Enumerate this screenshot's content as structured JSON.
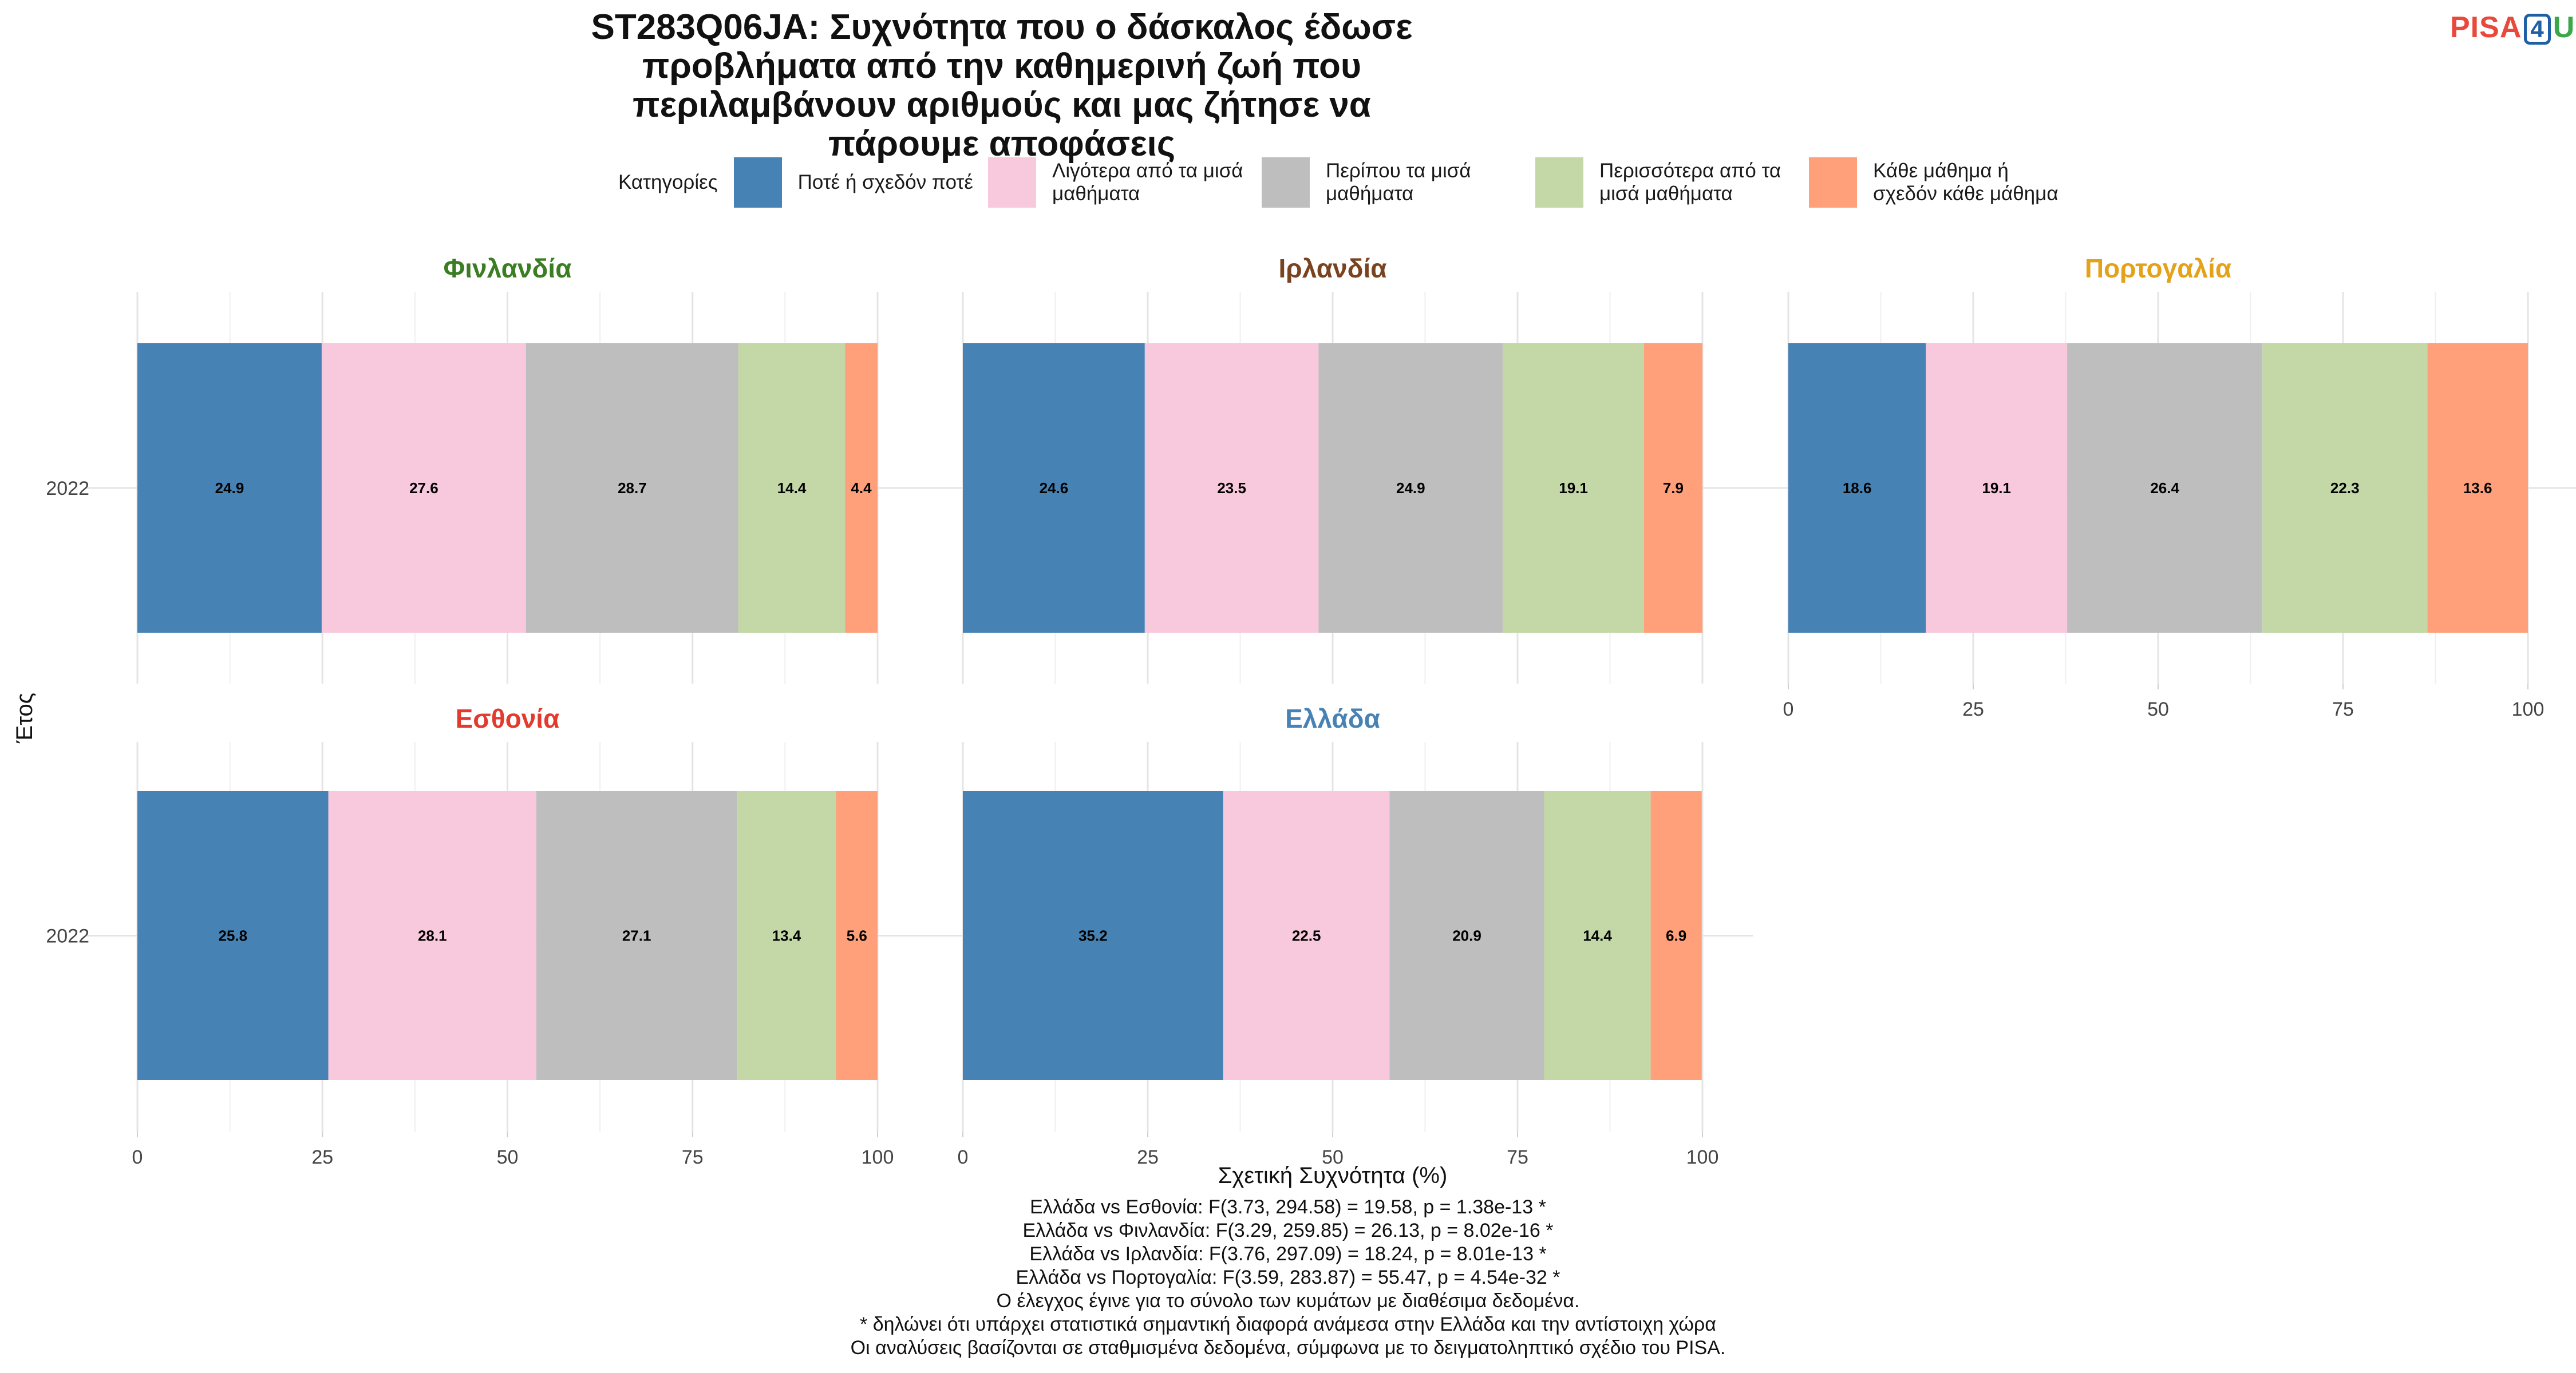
{
  "title": "ST283Q06JA: Συχνότητα που ο δάσκαλος έδωσε προβλήματα από την καθημερινή ζωή που περιλαμβάνουν αριθμούς και μας ζήτησε να πάρουμε αποφάσεις",
  "logo": {
    "p": "PISA",
    "four": "4",
    "u": "U"
  },
  "colors": {
    "never": "#4682b4",
    "less_half": "#f8c8dc",
    "about_half": "#bebebe",
    "more_half": "#c3d8a6",
    "every": "#ffa07a"
  },
  "legend": {
    "title": "Κατηγορίες",
    "items": [
      {
        "label": "Ποτέ ή σχεδόν ποτέ",
        "color": "#4682b4"
      },
      {
        "label": "Λιγότερα από τα μισά μαθήματα",
        "color": "#f8c8dc"
      },
      {
        "label": "Περίπου τα μισά μαθήματα",
        "color": "#bebebe"
      },
      {
        "label": "Περισσότερα από τα μισά μαθήματα",
        "color": "#c3d8a6"
      },
      {
        "label": "Κάθε μάθημα ή σχεδόν κάθε μάθημα",
        "color": "#ffa07a"
      }
    ]
  },
  "chart_data": {
    "type": "bar",
    "orientation": "horizontal",
    "stacked": true,
    "xlabel": "Σχετική Συχνότητα (%)",
    "ylabel": "Έτος",
    "xlim": [
      0,
      100
    ],
    "xticks": [
      0,
      25,
      50,
      75,
      100
    ],
    "categories": [
      "2022"
    ],
    "series_names": [
      "Ποτέ ή σχεδόν ποτέ",
      "Λιγότερα από τα μισά μαθήματα",
      "Περίπου τα μισά μαθήματα",
      "Περισσότερα από τα μισά μαθήματα",
      "Κάθε μάθημα ή σχεδόν κάθε μάθημα"
    ],
    "panels": [
      {
        "name": "Φινλανδία",
        "color": "#3a7d23",
        "year": "2022",
        "values": [
          24.9,
          27.6,
          28.7,
          14.4,
          4.4
        ]
      },
      {
        "name": "Ιρλανδία",
        "color": "#7a4320",
        "year": "2022",
        "values": [
          24.6,
          23.5,
          24.9,
          19.1,
          7.9
        ]
      },
      {
        "name": "Πορτογαλία",
        "color": "#e3a21a",
        "year": "2022",
        "values": [
          18.6,
          19.1,
          26.4,
          22.3,
          13.6
        ]
      },
      {
        "name": "Εσθονία",
        "color": "#e23a2e",
        "year": "2022",
        "values": [
          25.8,
          28.1,
          27.1,
          13.4,
          5.6
        ]
      },
      {
        "name": "Ελλάδα",
        "color": "#4682b4",
        "year": "2022",
        "values": [
          35.2,
          22.5,
          20.9,
          14.4,
          6.9
        ]
      }
    ]
  },
  "footnotes": [
    "Ελλάδα vs Εσθονία: F(3.73, 294.58) = 19.58, p = 1.38e-13 *",
    "Ελλάδα vs Φινλανδία: F(3.29, 259.85) = 26.13, p = 8.02e-16 *",
    "Ελλάδα vs Ιρλανδία: F(3.76, 297.09) = 18.24, p = 8.01e-13 *",
    "Ελλάδα vs Πορτογαλία: F(3.59, 283.87) = 55.47, p = 4.54e-32 *",
    "Ο έλεγχος έγινε για το σύνολο των κυμάτων με διαθέσιμα δεδομένα.",
    "* δηλώνει ότι υπάρχει στατιστικά σημαντική διαφορά ανάμεσα στην Ελλάδα και την αντίστοιχη χώρα",
    "Οι αναλύσεις βασίζονται σε σταθμισμένα δεδομένα, σύμφωνα με το δειγματοληπτικό σχέδιο του PISA."
  ]
}
